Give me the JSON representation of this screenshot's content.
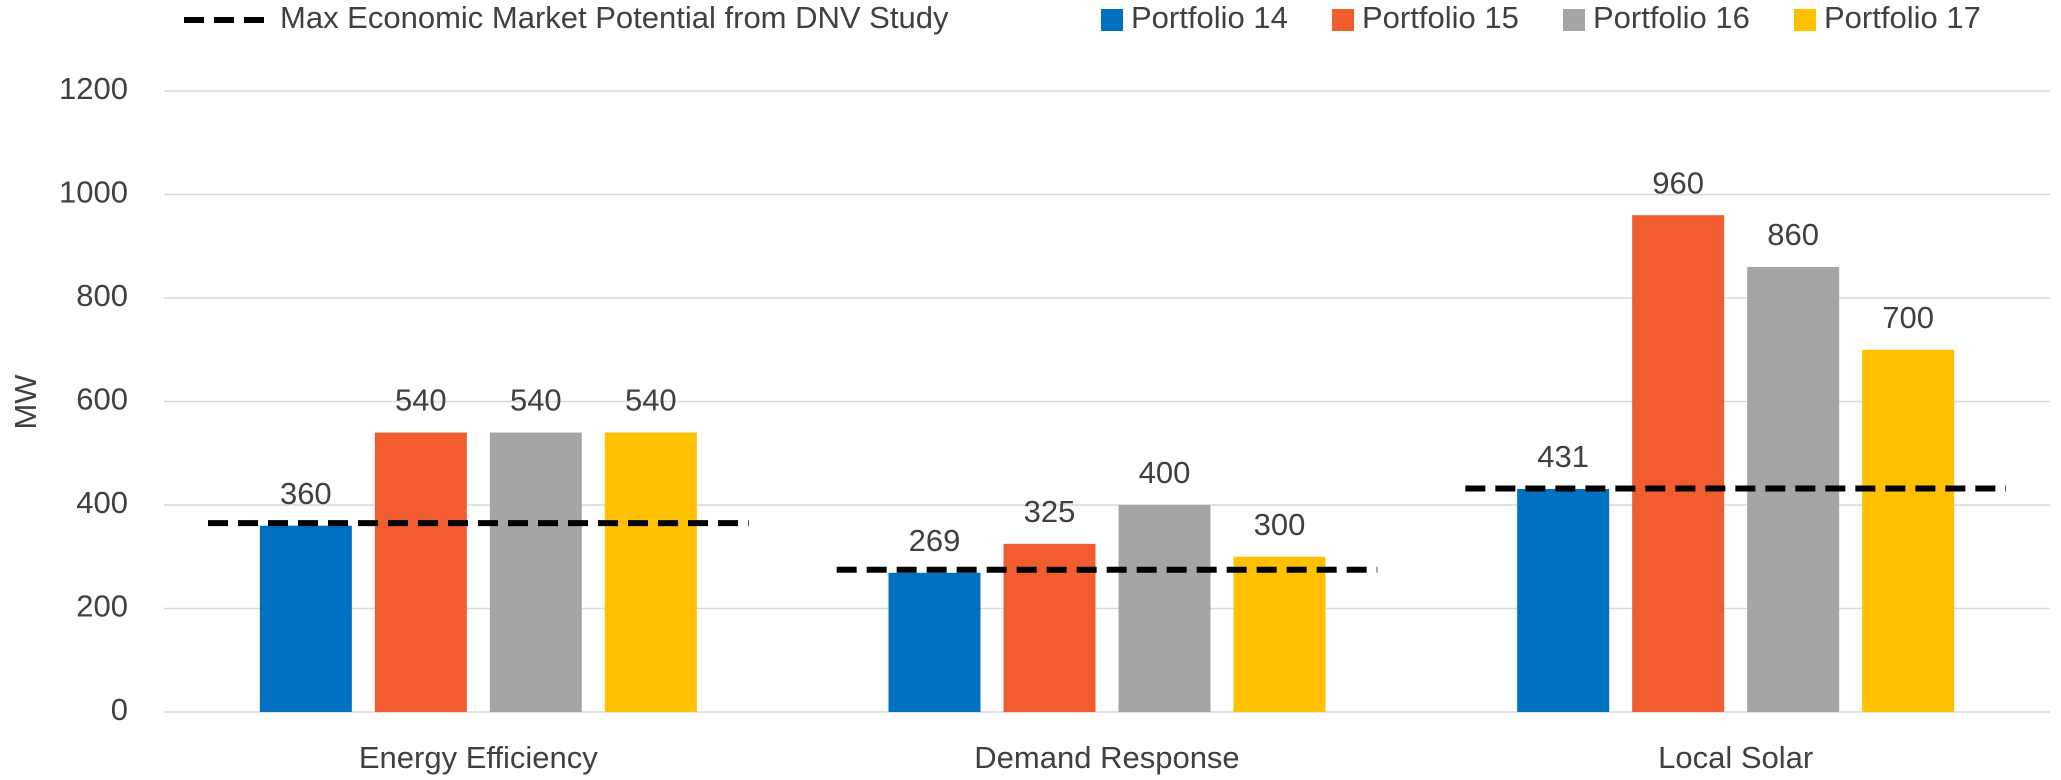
{
  "chart_data": {
    "type": "bar",
    "y_label": "MW",
    "categories": [
      "Energy Efficiency",
      "Demand Response",
      "Local Solar"
    ],
    "series": [
      {
        "name": "Portfolio 14",
        "color": "#0070c0",
        "values": [
          360,
          269,
          431
        ]
      },
      {
        "name": "Portfolio 15",
        "color": "#f15d2e",
        "values": [
          540,
          325,
          960
        ]
      },
      {
        "name": "Portfolio 16",
        "color": "#a5a5a5",
        "values": [
          540,
          400,
          860
        ]
      },
      {
        "name": "Portfolio 17",
        "color": "#ffc000",
        "values": [
          540,
          300,
          700
        ]
      }
    ],
    "lines": [
      {
        "name": "Max Economic Market Potential from DNV Study",
        "color": "#000000",
        "style": "dashed",
        "values": [
          365,
          275,
          432
        ]
      }
    ],
    "ylim": [
      0,
      1200
    ],
    "yticks": [
      0,
      200,
      400,
      600,
      800,
      1000,
      1200
    ],
    "grid": true
  }
}
